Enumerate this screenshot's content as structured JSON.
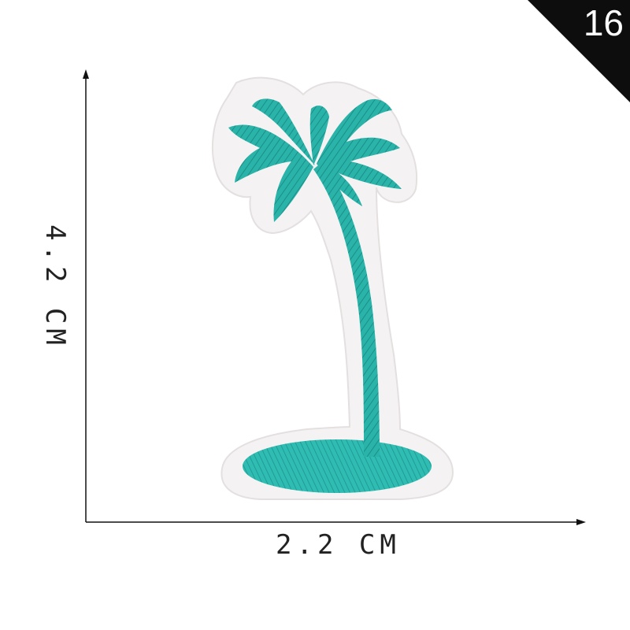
{
  "badge": {
    "number": "16"
  },
  "dimensions": {
    "height": "4.2 CM",
    "width": "2.2 CM"
  },
  "patch": {
    "subject": "palm tree on island",
    "thread_color": "#2ab3a9",
    "felt_color": "#f4f2f2"
  },
  "icons": {
    "arrow_up": "arrow-up-icon",
    "arrow_right": "arrow-right-icon"
  }
}
